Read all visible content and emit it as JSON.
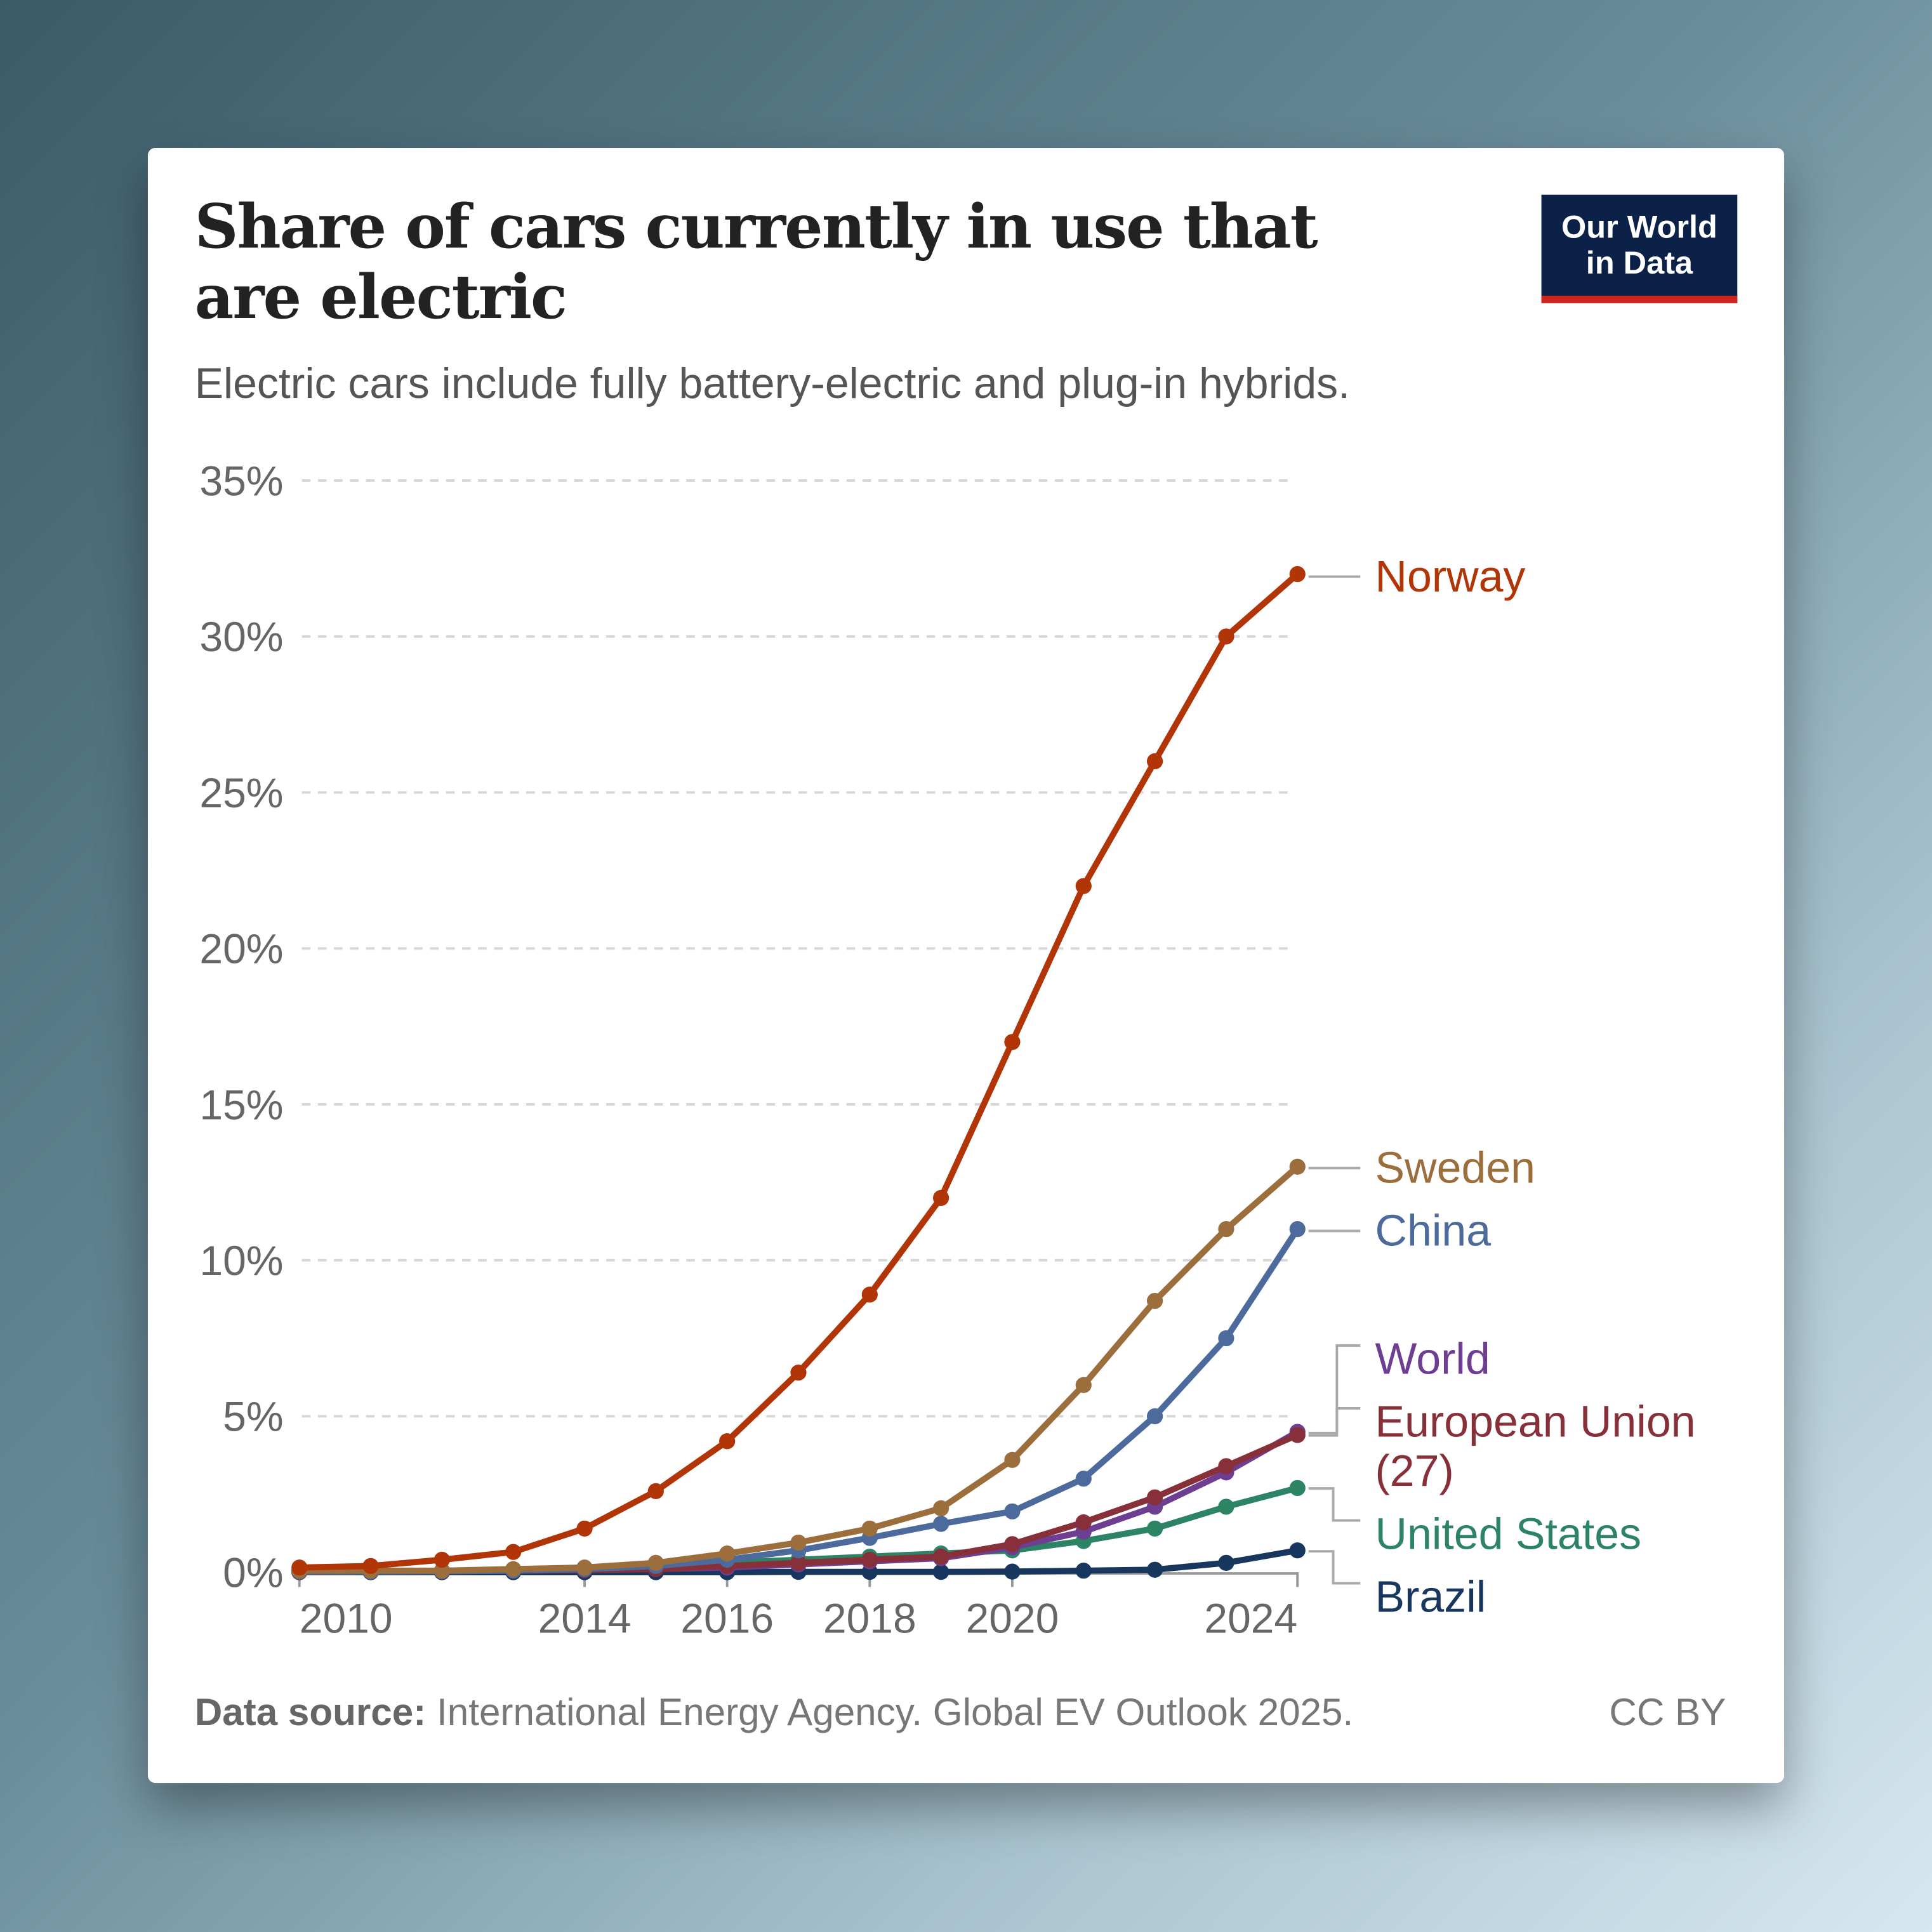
{
  "header": {
    "title": "Share of cars currently in use that are electric",
    "subtitle": "Electric cars include fully battery-electric and plug-in hybrids.",
    "logo_line1": "Our World",
    "logo_line2": "in Data"
  },
  "footer": {
    "source_label": "Data source:",
    "source_text": "International Energy Agency. Global EV Outlook 2025.",
    "license": "CC BY"
  },
  "chart_data": {
    "type": "line",
    "title": "Share of cars currently in use that are electric",
    "xlabel": "",
    "ylabel": "",
    "x": [
      2010,
      2011,
      2012,
      2013,
      2014,
      2015,
      2016,
      2017,
      2018,
      2019,
      2020,
      2021,
      2022,
      2023,
      2024
    ],
    "xticks": [
      "2010",
      "2014",
      "2016",
      "2018",
      "2020",
      "2024"
    ],
    "xtick_values": [
      2010,
      2014,
      2016,
      2018,
      2020,
      2024
    ],
    "yticks": [
      "0%",
      "5%",
      "10%",
      "15%",
      "20%",
      "25%",
      "30%",
      "35%"
    ],
    "ytick_values": [
      0,
      5,
      10,
      15,
      20,
      25,
      30,
      35
    ],
    "ylim": [
      0,
      35
    ],
    "grid": "horizontal-dashed",
    "series": [
      {
        "name": "Norway",
        "color": "#b13507",
        "values": [
          0.15,
          0.2,
          0.4,
          0.65,
          1.4,
          2.6,
          4.2,
          6.4,
          8.9,
          12,
          17,
          22,
          26,
          30,
          32
        ]
      },
      {
        "name": "Sweden",
        "color": "#9c6e3c",
        "values": [
          0.05,
          0.05,
          0.05,
          0.1,
          0.15,
          0.3,
          0.6,
          0.95,
          1.4,
          2.05,
          3.6,
          6,
          8.7,
          11,
          13
        ]
      },
      {
        "name": "China",
        "color": "#4c6a9c",
        "values": [
          0.02,
          0.02,
          0.03,
          0.05,
          0.1,
          0.2,
          0.4,
          0.7,
          1.1,
          1.55,
          1.95,
          3,
          5,
          7.5,
          11
        ]
      },
      {
        "name": "World",
        "color": "#6d3e91",
        "values": [
          0.01,
          0.02,
          0.03,
          0.05,
          0.07,
          0.1,
          0.15,
          0.25,
          0.35,
          0.45,
          0.8,
          1.3,
          2.1,
          3.2,
          4.5
        ]
      },
      {
        "name": "European Union",
        "name2": "(27)",
        "color": "#883039",
        "values": [
          0.01,
          0.02,
          0.03,
          0.05,
          0.07,
          0.1,
          0.2,
          0.3,
          0.4,
          0.5,
          0.9,
          1.6,
          2.4,
          3.4,
          4.4
        ]
      },
      {
        "name": "United States",
        "color": "#2c8465",
        "values": [
          0.02,
          0.03,
          0.05,
          0.07,
          0.1,
          0.2,
          0.3,
          0.4,
          0.5,
          0.6,
          0.7,
          1.0,
          1.4,
          2.1,
          2.7
        ]
      },
      {
        "name": "Brazil",
        "color": "#18375f",
        "values": [
          0,
          0,
          0,
          0,
          0,
          0,
          0,
          0.01,
          0.01,
          0.01,
          0.02,
          0.05,
          0.08,
          0.3,
          0.7
        ]
      }
    ]
  }
}
